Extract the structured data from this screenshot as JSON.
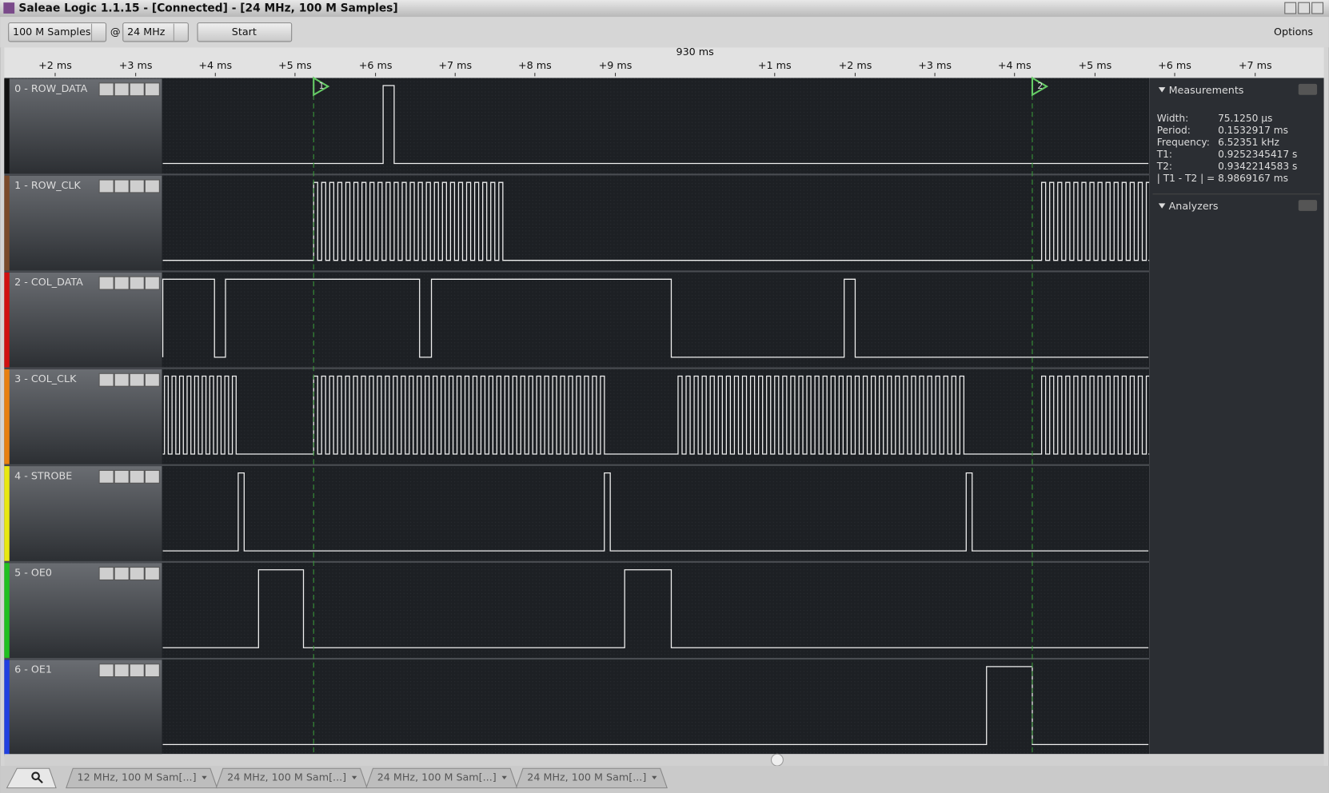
{
  "window": {
    "title": "Saleae Logic 1.1.15 - [Connected] - [24 MHz, 100 M Samples]"
  },
  "toolbar": {
    "samples": "100 M Samples",
    "at": "@",
    "rate": "24 MHz",
    "start": "Start",
    "options": "Options"
  },
  "ruler": {
    "center": "930 ms",
    "ticks": [
      "+2 ms",
      "+3 ms",
      "+4 ms",
      "+5 ms",
      "+6 ms",
      "+7 ms",
      "+8 ms",
      "+9 ms",
      "+1 ms",
      "+2 ms",
      "+3 ms",
      "+4 ms",
      "+5 ms",
      "+6 ms",
      "+7 ms"
    ]
  },
  "channels": [
    "0 - ROW_DATA",
    "1 - ROW_CLK",
    "2 - COL_DATA",
    "3 - COL_CLK",
    "4 - STROBE",
    "5 - OE0",
    "6 - OE1"
  ],
  "markers": [
    "1",
    "2"
  ],
  "measurements": {
    "title": "Measurements",
    "rows": [
      [
        "Width:",
        "75.1250 µs"
      ],
      [
        "Period:",
        "0.1532917 ms"
      ],
      [
        "Frequency:",
        "6.52351 kHz"
      ],
      [
        "T1:",
        "0.9252345417 s"
      ],
      [
        "T2:",
        "0.9342214583 s"
      ],
      [
        "| T1 - T2 | =",
        "8.9869167 ms"
      ]
    ]
  },
  "analyzers": {
    "title": "Analyzers"
  },
  "tabs": [
    "12 MHz, 100 M Sam[...]",
    "24 MHz, 100 M Sam[...]",
    "24 MHz, 100 M Sam[...]",
    "24 MHz, 100 M Sam[...]"
  ]
}
